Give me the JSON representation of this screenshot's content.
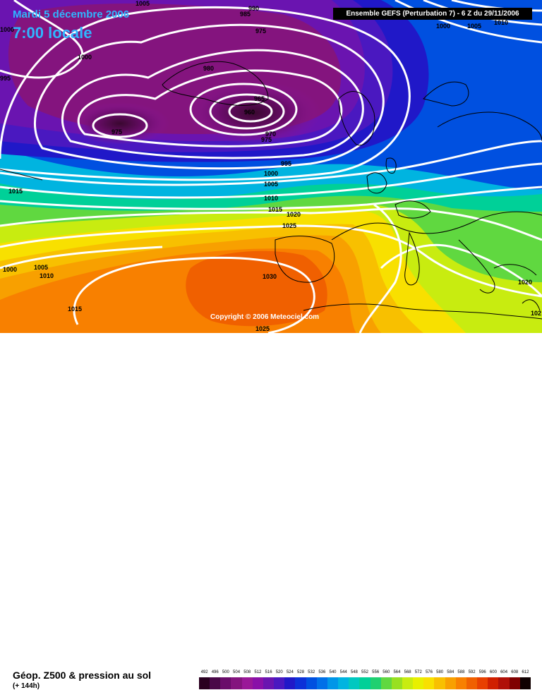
{
  "header": {
    "date": "Mardi 5 décembre 2006",
    "time": "7:00 locale",
    "model": "Ensemble GEFS (Perturbation 7)  -  6 Z du 29/11/2006",
    "copyright": "Copyright © 2006 Meteociel.com"
  },
  "footer": {
    "parameter": "Géop. Z500 & pression au sol",
    "lead_time": "(+ 144h)"
  },
  "scale": {
    "values": [
      "492",
      "496",
      "500",
      "504",
      "508",
      "512",
      "516",
      "520",
      "524",
      "528",
      "532",
      "536",
      "540",
      "544",
      "548",
      "552",
      "556",
      "560",
      "564",
      "568",
      "572",
      "576",
      "580",
      "584",
      "588",
      "592",
      "596",
      "600",
      "604",
      "608",
      "612"
    ],
    "colors": [
      "#2a0020",
      "#4a0848",
      "#6a0c6a",
      "#84147e",
      "#9a1898",
      "#8a10a8",
      "#6a14b0",
      "#4a18c0",
      "#2018c8",
      "#0c30d8",
      "#0050e0",
      "#0070e8",
      "#0096e8",
      "#00b4e0",
      "#00c8c0",
      "#00d098",
      "#20d070",
      "#60d840",
      "#98e020",
      "#c8ec10",
      "#e8f000",
      "#f8e000",
      "#f8c000",
      "#f8a000",
      "#f88000",
      "#f06000",
      "#e84000",
      "#d02000",
      "#b01008",
      "#800000",
      "#100000"
    ]
  },
  "isobar_labels": {
    "top_left_1005": "1005",
    "top_left_1000": "1000",
    "left_995": "995",
    "left_1000_b": "1000",
    "c985": "985",
    "c990": "990",
    "c975a": "975",
    "c980": "980",
    "c975b": "975",
    "c965": "965",
    "c960": "960",
    "c970": "970",
    "c975c": "975",
    "c995": "995",
    "c1000": "1000",
    "c1005": "1005",
    "c1010": "1010",
    "c1015a": "1015",
    "c1020": "1020",
    "c1025a": "1025",
    "left_1015": "1015",
    "left_1000_c": "1000",
    "left_1005": "1005",
    "left_1010": "1010",
    "left_1015_b": "1015",
    "c1030": "1030",
    "c1025b": "1025",
    "right_1000": "1000",
    "right_1005": "1005",
    "right_1010": "1010",
    "right_1020": "1020",
    "right_102": "102"
  },
  "colors": {
    "title": "#2fb6ff",
    "isobar": "#ffffff",
    "coastline": "#000000"
  }
}
